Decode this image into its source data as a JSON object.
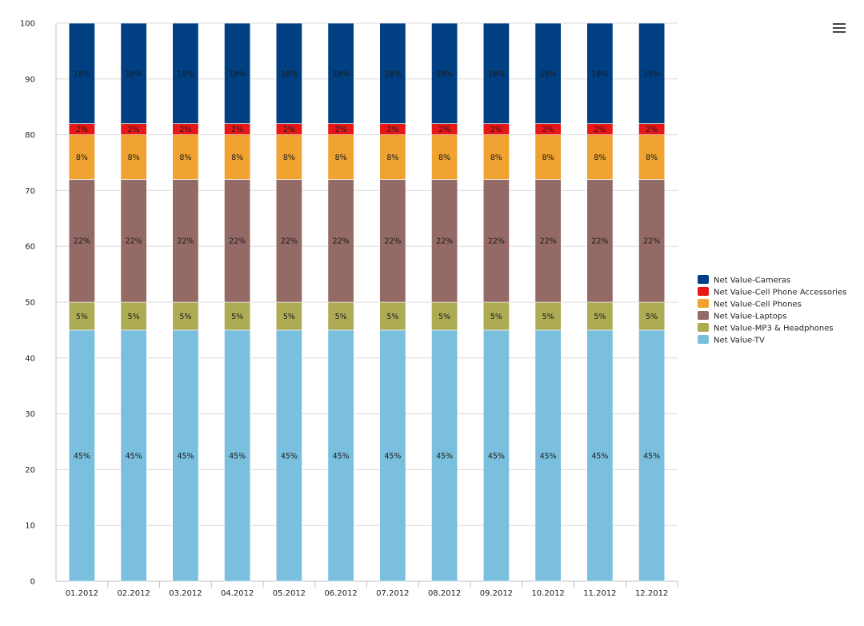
{
  "menu_icon": "hamburger-menu-icon",
  "chart_data": {
    "type": "bar",
    "stacked": true,
    "title": "",
    "xlabel": "",
    "ylabel": "",
    "ylim": [
      0,
      100
    ],
    "yticks": [
      0,
      10,
      20,
      30,
      40,
      50,
      60,
      70,
      80,
      90,
      100
    ],
    "grid": true,
    "legend_position": "right",
    "categories": [
      "01.2012",
      "02.2012",
      "03.2012",
      "04.2012",
      "05.2012",
      "06.2012",
      "07.2012",
      "08.2012",
      "09.2012",
      "10.2012",
      "11.2012",
      "12.2012"
    ],
    "series": [
      {
        "name": "Net Value-TV",
        "color": "#7ac0de",
        "values": [
          45,
          45,
          45,
          45,
          45,
          45,
          45,
          45,
          45,
          45,
          45,
          45
        ],
        "labels": [
          "45%",
          "45%",
          "45%",
          "45%",
          "45%",
          "45%",
          "45%",
          "45%",
          "45%",
          "45%",
          "45%",
          "45%"
        ]
      },
      {
        "name": "Net Value-MP3 & Headphones",
        "color": "#adab54",
        "values": [
          5,
          5,
          5,
          5,
          5,
          5,
          5,
          5,
          5,
          5,
          5,
          5
        ],
        "labels": [
          "5%",
          "5%",
          "5%",
          "5%",
          "5%",
          "5%",
          "5%",
          "5%",
          "5%",
          "5%",
          "5%",
          "5%"
        ]
      },
      {
        "name": "Net Value-Laptops",
        "color": "#946a66",
        "values": [
          22,
          22,
          22,
          22,
          22,
          22,
          22,
          22,
          22,
          22,
          22,
          22
        ],
        "labels": [
          "22%",
          "22%",
          "22%",
          "22%",
          "22%",
          "22%",
          "22%",
          "22%",
          "22%",
          "22%",
          "22%",
          "22%"
        ]
      },
      {
        "name": "Net Value-Cell Phones",
        "color": "#f0a330",
        "values": [
          8,
          8,
          8,
          8,
          8,
          8,
          8,
          8,
          8,
          8,
          8,
          8
        ],
        "labels": [
          "8%",
          "8%",
          "8%",
          "8%",
          "8%",
          "8%",
          "8%",
          "8%",
          "8%",
          "8%",
          "8%",
          "8%"
        ]
      },
      {
        "name": "Net Value-Cell Phone Accessories",
        "color": "#e61717",
        "values": [
          2,
          2,
          2,
          2,
          2,
          2,
          2,
          2,
          2,
          2,
          2,
          2
        ],
        "labels": [
          "2%",
          "2%",
          "2%",
          "2%",
          "2%",
          "2%",
          "2%",
          "2%",
          "2%",
          "2%",
          "2%",
          "2%"
        ]
      },
      {
        "name": "Net Value-Cameras",
        "color": "#003f82",
        "values": [
          18,
          18,
          18,
          18,
          18,
          18,
          18,
          18,
          18,
          18,
          18,
          18
        ],
        "labels": [
          "18%",
          "18%",
          "18%",
          "18%",
          "18%",
          "18%",
          "18%",
          "18%",
          "18%",
          "18%",
          "18%",
          "18%"
        ]
      }
    ],
    "legend_order": [
      "Net Value-Cameras",
      "Net Value-Cell Phone Accessories",
      "Net Value-Cell Phones",
      "Net Value-Laptops",
      "Net Value-MP3 & Headphones",
      "Net Value-TV"
    ]
  }
}
